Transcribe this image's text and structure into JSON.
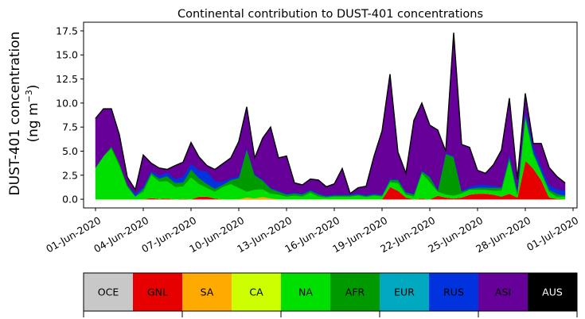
{
  "chart_data": {
    "type": "area",
    "stacked": true,
    "title": "Continental contribution to DUST-401 concentrations",
    "ylabel_line1": "DUST-401 concentration",
    "ylabel_line2_prefix": "(ng m",
    "ylabel_sup": "−3",
    "ylabel_line2_suffix": ")",
    "xlabel": "",
    "ylim": [
      -0.9,
      18.4
    ],
    "yticks": [
      0.0,
      2.5,
      5.0,
      7.5,
      10.0,
      12.5,
      15.0,
      17.5
    ],
    "ytick_labels": [
      "0.0",
      "2.5",
      "5.0",
      "7.5",
      "10.0",
      "12.5",
      "15.0",
      "17.5"
    ],
    "x_start_date": "2020-06-01",
    "xlim_days": [
      -0.75,
      30.25
    ],
    "xticks_days": [
      0,
      3,
      6,
      9,
      12,
      15,
      18,
      21,
      24,
      27,
      30
    ],
    "xtick_labels": [
      "01-Jun-2020",
      "04-Jun-2020",
      "07-Jun-2020",
      "10-Jun-2020",
      "13-Jun-2020",
      "16-Jun-2020",
      "19-Jun-2020",
      "22-Jun-2020",
      "25-Jun-2020",
      "28-Jun-2020",
      "01-Jul-2020"
    ],
    "grid": false,
    "x_days": [
      0,
      0.5,
      1,
      1.5,
      2,
      2.5,
      3,
      3.5,
      4,
      4.5,
      5,
      5.5,
      6,
      6.5,
      7,
      7.5,
      8,
      8.5,
      9,
      9.5,
      10,
      10.5,
      11,
      11.5,
      12,
      12.5,
      13,
      13.5,
      14,
      14.5,
      15,
      15.5,
      16,
      16.5,
      17,
      17.5,
      18,
      18.5,
      19,
      19.5,
      20,
      20.5,
      21,
      21.5,
      22,
      22.5,
      23,
      23.5,
      24,
      24.5,
      25,
      25.5,
      26,
      26.5,
      27,
      27.5,
      28,
      28.5,
      29,
      29.5
    ],
    "series": [
      {
        "name": "OCE",
        "color": "#c8c8c8",
        "values": [
          0,
          0,
          0,
          0,
          0,
          0,
          0,
          0,
          0,
          0,
          0,
          0,
          0,
          0,
          0,
          0,
          0,
          0,
          0,
          0,
          0,
          0,
          0,
          0,
          0,
          0,
          0,
          0,
          0,
          0,
          0,
          0,
          0,
          0,
          0,
          0,
          0,
          0,
          0,
          0,
          0,
          0,
          0,
          0,
          0,
          0,
          0,
          0,
          0,
          0,
          0,
          0,
          0,
          0,
          0,
          0,
          0,
          0,
          0,
          0
        ]
      },
      {
        "name": "GNL",
        "color": "#e60000",
        "values": [
          0,
          0,
          0,
          0,
          0,
          0,
          0,
          0.15,
          0.05,
          0.1,
          0,
          0.05,
          0,
          0.3,
          0.3,
          0.1,
          0,
          0,
          0,
          0,
          0,
          0,
          0,
          0,
          0,
          0,
          0,
          0,
          0,
          0,
          0,
          0,
          0,
          0,
          0,
          0,
          0,
          1.3,
          0.9,
          0.2,
          0,
          0.1,
          0,
          0.4,
          0.2,
          0.1,
          0.2,
          0.5,
          0.6,
          0.6,
          0.5,
          0.3,
          0.6,
          0.2,
          4,
          3.2,
          2,
          0.2,
          0.05,
          0
        ]
      },
      {
        "name": "SA",
        "color": "#ffaa00",
        "values": [
          0,
          0,
          0,
          0,
          0,
          0,
          0,
          0,
          0,
          0,
          0,
          0,
          0,
          0,
          0,
          0,
          0,
          0,
          0,
          0.2,
          0.1,
          0.25,
          0.1,
          0,
          0,
          0,
          0,
          0,
          0,
          0,
          0,
          0,
          0,
          0,
          0,
          0,
          0,
          0,
          0,
          0,
          0,
          0,
          0,
          0,
          0,
          0,
          0,
          0,
          0,
          0,
          0,
          0,
          0,
          0,
          0,
          0,
          0,
          0,
          0,
          0
        ]
      },
      {
        "name": "CA",
        "color": "#ccff00",
        "values": [
          0,
          0,
          0,
          0,
          0,
          0,
          0,
          0,
          0,
          0,
          0,
          0,
          0,
          0,
          0,
          0,
          0,
          0,
          0,
          0,
          0,
          0,
          0,
          0,
          0,
          0,
          0,
          0,
          0,
          0,
          0,
          0,
          0,
          0,
          0,
          0,
          0,
          0,
          0,
          0,
          0,
          0,
          0,
          0,
          0,
          0,
          0,
          0,
          0,
          0,
          0,
          0,
          0,
          0,
          0,
          0,
          0,
          0,
          0,
          0
        ]
      },
      {
        "name": "NA",
        "color": "#00e000",
        "values": [
          3.3,
          4.5,
          5.3,
          3.5,
          1.3,
          0.3,
          0.8,
          2.4,
          1.8,
          1.8,
          1.3,
          1.3,
          2.3,
          1.3,
          0.9,
          0.7,
          1.3,
          1.6,
          1.2,
          0.6,
          0.9,
          0.8,
          0.5,
          0.5,
          0.3,
          0.4,
          0.3,
          0.7,
          0.3,
          0.2,
          0.3,
          0.3,
          0.3,
          0.4,
          0.25,
          0.4,
          0.3,
          0.5,
          0.8,
          0.3,
          0.3,
          2.6,
          1.8,
          0.4,
          0.3,
          0.3,
          0.4,
          0.5,
          0.4,
          0.4,
          0.4,
          0.6,
          3.5,
          0.3,
          4.5,
          1.5,
          0.8,
          0.6,
          0.2,
          0.3
        ]
      },
      {
        "name": "AFR",
        "color": "#009900",
        "values": [
          0,
          0,
          0.2,
          0.3,
          0.2,
          0,
          0.3,
          0.2,
          0.3,
          0.5,
          0.4,
          0.4,
          0.8,
          0.6,
          0.4,
          0.3,
          0.2,
          0.4,
          1,
          4.4,
          1.5,
          0.9,
          0.5,
          0.3,
          0.2,
          0.2,
          0.2,
          0.2,
          0.2,
          0.1,
          0.1,
          0.1,
          0.1,
          0.1,
          0.1,
          0.1,
          0.1,
          0.2,
          0.3,
          0.2,
          0.2,
          0.2,
          0.5,
          0.1,
          4.2,
          4.0,
          0.2,
          0.1,
          0.2,
          0.2,
          0.3,
          0.3,
          0.3,
          0.2,
          0.3,
          0.2,
          0.1,
          0.2,
          0.3,
          0.1
        ]
      },
      {
        "name": "EUR",
        "color": "#00a8c0",
        "values": [
          0,
          0,
          0,
          0,
          0,
          0,
          0,
          0,
          0,
          0,
          0,
          0,
          0,
          0,
          0,
          0,
          0,
          0,
          0,
          0,
          0,
          0,
          0,
          0,
          0,
          0,
          0,
          0,
          0,
          0,
          0,
          0,
          0,
          0,
          0,
          0,
          0,
          0,
          0,
          0,
          0,
          0,
          0,
          0,
          0,
          0,
          0,
          0,
          0,
          0,
          0,
          0,
          0,
          0,
          0,
          0,
          0,
          0,
          0,
          0
        ]
      },
      {
        "name": "RUS",
        "color": "#0033dd",
        "values": [
          0,
          0,
          0,
          0,
          0,
          0.3,
          0.2,
          0.2,
          0.3,
          0.4,
          0.4,
          0.6,
          0.6,
          0.8,
          1.3,
          0.8,
          0.3,
          0.2,
          0.2,
          0.1,
          0.1,
          0.1,
          0.1,
          0.1,
          0.1,
          0.1,
          0.1,
          0.1,
          0.1,
          0.1,
          0.1,
          0.1,
          0.1,
          0.1,
          0.1,
          0.1,
          0.1,
          0.1,
          0.1,
          0.1,
          0.1,
          0.1,
          0.1,
          0.1,
          0.1,
          0.1,
          0.1,
          0.2,
          0.3,
          0.3,
          0.2,
          0.1,
          0.3,
          0.3,
          0.4,
          0.6,
          0.5,
          0.5,
          0.5,
          0.5
        ]
      },
      {
        "name": "ASI",
        "color": "#660099",
        "values": [
          5.1,
          4.9,
          3.9,
          2.9,
          0.8,
          0.4,
          3.3,
          0.8,
          0.8,
          0.3,
          1.4,
          1.5,
          2.2,
          1.4,
          0.6,
          1.2,
          1.9,
          2.1,
          3.6,
          4.3,
          1.7,
          4.3,
          6.3,
          3.4,
          3.9,
          1.0,
          0.9,
          1.1,
          1.4,
          0.9,
          1.1,
          2.7,
          0.1,
          0.6,
          0.9,
          3.9,
          6.6,
          10.9,
          2.8,
          1.9,
          7.6,
          7.0,
          5.3,
          6.2,
          0.2,
          12.8,
          4.8,
          4.1,
          1.5,
          1.2,
          2.2,
          3.8,
          5.8,
          1.1,
          1.8,
          0.3,
          2.4,
          1.8,
          1.3,
          0.8
        ]
      },
      {
        "name": "AUS",
        "color": "#000000",
        "values": [
          0,
          0,
          0,
          0,
          0,
          0,
          0,
          0,
          0,
          0,
          0,
          0,
          0,
          0,
          0,
          0,
          0,
          0,
          0,
          0,
          0,
          0,
          0,
          0,
          0,
          0,
          0,
          0,
          0,
          0,
          0,
          0,
          0,
          0,
          0,
          0,
          0,
          0,
          0,
          0,
          0,
          0,
          0,
          0,
          0,
          0,
          0,
          0,
          0,
          0,
          0,
          0,
          0,
          0,
          0,
          0,
          0,
          0,
          0,
          0
        ]
      }
    ]
  },
  "legend": {
    "items": [
      {
        "label": "OCE",
        "color": "#c8c8c8",
        "text_color": "#000000"
      },
      {
        "label": "GNL",
        "color": "#e60000",
        "text_color": "#000000"
      },
      {
        "label": "SA",
        "color": "#ffaa00",
        "text_color": "#000000"
      },
      {
        "label": "CA",
        "color": "#ccff00",
        "text_color": "#000000"
      },
      {
        "label": "NA",
        "color": "#00e000",
        "text_color": "#000000"
      },
      {
        "label": "AFR",
        "color": "#009900",
        "text_color": "#000000"
      },
      {
        "label": "EUR",
        "color": "#00a8c0",
        "text_color": "#000000"
      },
      {
        "label": "RUS",
        "color": "#0033dd",
        "text_color": "#000000"
      },
      {
        "label": "ASI",
        "color": "#660099",
        "text_color": "#000000"
      },
      {
        "label": "AUS",
        "color": "#000000",
        "text_color": "#ffffff"
      }
    ]
  }
}
